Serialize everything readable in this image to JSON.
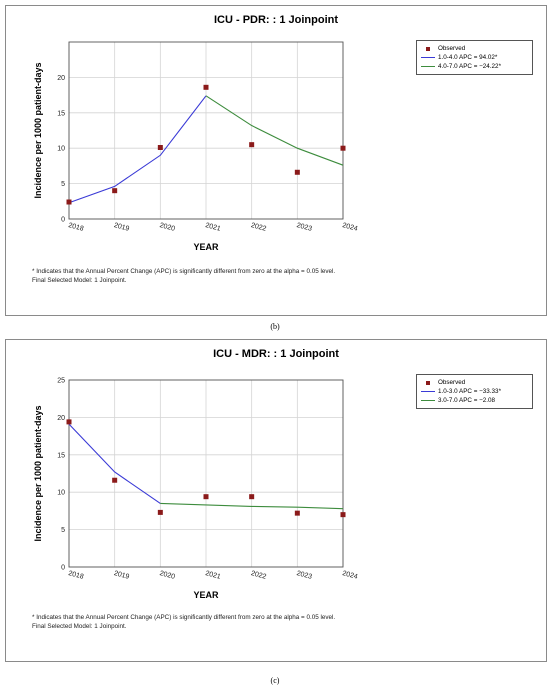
{
  "charts": [
    {
      "title": "ICU - PDR: : 1 Joinpoint",
      "caption": "(b)",
      "legend": {
        "observed_label": "Observed",
        "segments": [
          "1.0-4.0 APC  =  94.02*",
          "4.0-7.0 APC  =  −24.22*"
        ]
      },
      "footnote_1": "* Indicates that the Annual Percent Change (APC) is significantly different from zero at the alpha = 0.05 level.",
      "footnote_2": "Final Selected Model: 1 Joinpoint."
    },
    {
      "title": "ICU - MDR: : 1 Joinpoint",
      "caption": "(c)",
      "legend": {
        "observed_label": "Observed",
        "segments": [
          "1.0-3.0 APC  =  −33.33*",
          "3.0-7.0 APC  =  −2.08"
        ]
      },
      "footnote_1": "* Indicates that the Annual Percent Change (APC) is significantly different from zero at the alpha = 0.05 level.",
      "footnote_2": "Final Selected Model: 1 Joinpoint."
    }
  ],
  "chart_data": [
    {
      "type": "line",
      "title": "ICU - PDR: : 1 Joinpoint",
      "xlabel": "YEAR",
      "ylabel": "Incidence per 1000 patient-days",
      "x_ticks": [
        "2018",
        "2019",
        "2020",
        "2021",
        "2022",
        "2023",
        "2024"
      ],
      "xlim": [
        2018,
        2024
      ],
      "ylim": [
        0,
        25
      ],
      "y_ticks": [
        0,
        5,
        10,
        15,
        20
      ],
      "grid": true,
      "legend_position": "top-right",
      "observed": {
        "name": "Observed",
        "color": "#8b1a1a",
        "x": [
          2018,
          2019,
          2020,
          2021,
          2022,
          2023,
          2024
        ],
        "y": [
          2.4,
          4.0,
          10.1,
          18.6,
          10.5,
          6.6,
          10.0
        ]
      },
      "series": [
        {
          "name": "1.0-4.0 APC  =  94.02*",
          "color": "#3a3ad6",
          "x": [
            2018,
            2019,
            2020,
            2021
          ],
          "y": [
            2.3,
            4.6,
            9.0,
            17.4
          ]
        },
        {
          "name": "4.0-7.0 APC  =  −24.22*",
          "color": "#3d8c3d",
          "x": [
            2021,
            2022,
            2023,
            2024
          ],
          "y": [
            17.4,
            13.2,
            10.0,
            7.6
          ]
        }
      ]
    },
    {
      "type": "line",
      "title": "ICU - MDR: : 1 Joinpoint",
      "xlabel": "YEAR",
      "ylabel": "Incidence per 1000 patient-days",
      "x_ticks": [
        "2018",
        "2019",
        "2020",
        "2021",
        "2022",
        "2023",
        "2024"
      ],
      "xlim": [
        2018,
        2024
      ],
      "ylim": [
        0,
        25
      ],
      "y_ticks": [
        0,
        5,
        10,
        15,
        20,
        25
      ],
      "grid": true,
      "legend_position": "top-right",
      "observed": {
        "name": "Observed",
        "color": "#8b1a1a",
        "x": [
          2018,
          2019,
          2020,
          2021,
          2022,
          2023,
          2024
        ],
        "y": [
          19.4,
          11.6,
          7.3,
          9.4,
          9.4,
          7.2,
          7.0
        ]
      },
      "series": [
        {
          "name": "1.0-3.0 APC  =  −33.33*",
          "color": "#3a3ad6",
          "x": [
            2018,
            2019,
            2020
          ],
          "y": [
            19.1,
            12.7,
            8.5
          ]
        },
        {
          "name": "3.0-7.0 APC  =  −2.08",
          "color": "#3d8c3d",
          "x": [
            2020,
            2021,
            2022,
            2023,
            2024
          ],
          "y": [
            8.5,
            8.3,
            8.1,
            8.0,
            7.8
          ]
        }
      ]
    }
  ]
}
